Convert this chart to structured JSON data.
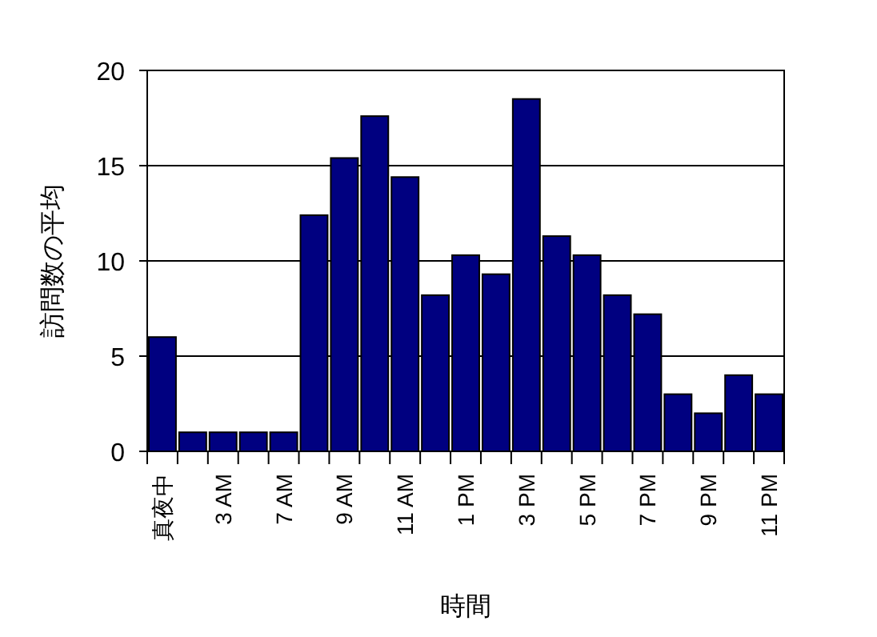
{
  "chart_data": {
    "type": "bar",
    "xlabel": "時間",
    "ylabel": "訪問数の平均",
    "categories": [
      "真夜中",
      null,
      "3 AM",
      null,
      "7 AM",
      null,
      "9 AM",
      null,
      "11 AM",
      null,
      "1 PM",
      null,
      "3 PM",
      null,
      "5 PM",
      null,
      "7 PM",
      null,
      "9 PM",
      null,
      "11 PM"
    ],
    "values": [
      6,
      1,
      1,
      1,
      1,
      12.4,
      15.4,
      17.6,
      14.4,
      8.2,
      10.3,
      9.3,
      18.5,
      11.3,
      10.3,
      8.2,
      7.2,
      3,
      2,
      4,
      3
    ],
    "color": "#000080",
    "ylim": [
      0,
      20
    ],
    "yticks": [
      0,
      5,
      10,
      15,
      20
    ],
    "grid": "y"
  }
}
